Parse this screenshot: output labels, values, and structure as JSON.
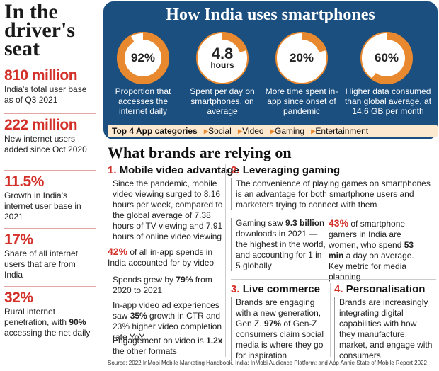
{
  "sidebar": {
    "title": "In the driver's seat",
    "stats": [
      {
        "value": "810 million",
        "desc": "India's total user base as of Q3 2021"
      },
      {
        "value": "222 million",
        "desc": "New internet users added since Oct 2020"
      },
      {
        "value": "11.5%",
        "desc": "Growth in India's internet user base in 2021"
      },
      {
        "value": "17%",
        "desc": "Share of all internet users that are from India"
      },
      {
        "value": "32%",
        "desc_pre": "Rural internet penetration, with ",
        "desc_bold": "90%",
        "desc_post": " accessing the net daily"
      }
    ]
  },
  "chart_data": {
    "type": "gauge",
    "title": "How India uses smartphones",
    "items": [
      {
        "display": "92%",
        "fill_fraction": 0.92,
        "label": "Proportion that accesses the internet daily"
      },
      {
        "display": "4.8",
        "unit": "hours",
        "fill_fraction": 0.2,
        "label": "Spent per day on smartphones, on average"
      },
      {
        "display": "20%",
        "fill_fraction": 0.2,
        "label": "More time spent in-app since onset of pandemic"
      },
      {
        "display": "60%",
        "fill_fraction": 0.6,
        "label": "Higher data consumed than global average, at 14.6 GB per month"
      }
    ],
    "colors": {
      "fill": "#e9892f",
      "track": "#ffffff",
      "ring": "#e9892f",
      "panel": "#1a4f80"
    }
  },
  "apps": {
    "label": "Top 4 App categories",
    "categories": [
      "Social",
      "Video",
      "Gaming",
      "Entertainment"
    ]
  },
  "brands": {
    "title": "What brands are relying on",
    "sections": {
      "video": {
        "num": "1.",
        "title": "Mobile video advantage",
        "b1": "Since the pandemic, mobile video viewing surged to 8.16 hours per week, compared to the global average of 7.38 hours of TV viewing and 7.91 hours of online video viewing",
        "b2_pct": "42%",
        "b2_text": " of all in-app spends in India accounted for by video",
        "b3_pre": "Spends grew by ",
        "b3_bold": "79%",
        "b3_post": " from 2020 to 2021",
        "b4_pre": "In-app video ad experiences saw ",
        "b4_bold": "35%",
        "b4_post": " growth in CTR and 23% higher video completion rate YoY",
        "b5_pre": "Engagement on video is ",
        "b5_bold": "1.2x",
        "b5_post": " the other formats"
      },
      "gaming": {
        "num": "2.",
        "title": "Leveraging gaming",
        "b1": "The convenience of playing games on smartphones is an advantage for both smartphone users and marketers trying to connect with them",
        "b2_pre": "Gaming saw ",
        "b2_bold": "9.3 billion",
        "b2_post": " downloads in 2021 — the highest in the world, and accounting for 1 in 5 globally",
        "b3_pct": "43%",
        "b3_text1": " of smartphone gamers in India are women, who spend ",
        "b3_bold": "53 min",
        "b3_text2": " a day on average. Key metric for media planning"
      },
      "commerce": {
        "num": "3.",
        "title": "Live commerce",
        "b1_pre": "Brands are engaging with a new generation, Gen Z. ",
        "b1_bold": "97%",
        "b1_post": " of Gen-Z consumers claim social media is where they go for inspiration"
      },
      "personal": {
        "num": "4.",
        "title": "Personalisation",
        "b1": "Brands are increasingly integrating digital capabilities with how they manufacture, market, and engage with consumers"
      }
    }
  },
  "source": "Source: 2022 InMobi Mobile Marketing Handbook, India; InMobi Audience Platform; and App Annie State of Mobile Report 2022"
}
